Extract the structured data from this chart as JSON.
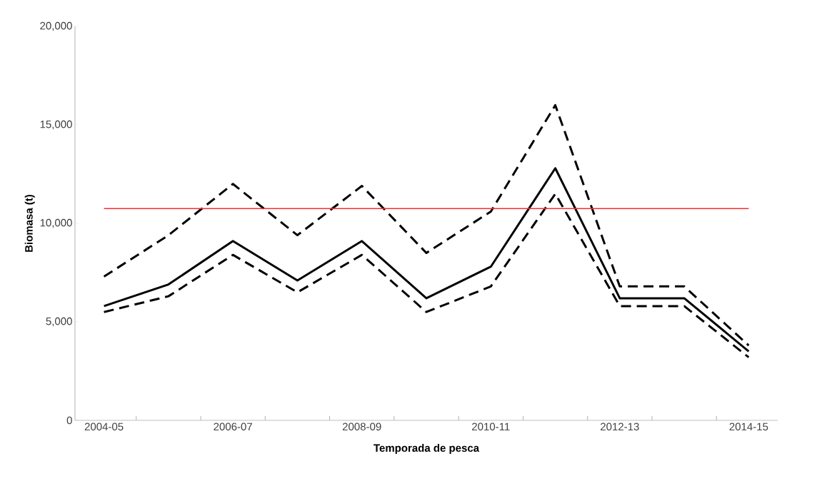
{
  "chart_data": {
    "type": "line",
    "xlabel": "Temporada de pesca",
    "ylabel": "Biomasa (t)",
    "categories": [
      "2004-05",
      null,
      "2006-07",
      null,
      "2008-09",
      null,
      "2010-11",
      null,
      "2012-13",
      null,
      "2014-15"
    ],
    "series": [
      {
        "color": "#000000",
        "line_style": "dashed",
        "values": [
          7300,
          9400,
          12000,
          9400,
          11900,
          8500,
          10600,
          16000,
          6800,
          6800,
          3800
        ]
      },
      {
        "color": "#000000",
        "line_style": "solid",
        "values": [
          5800,
          6900,
          9100,
          7100,
          9100,
          6200,
          7800,
          12800,
          6200,
          6200,
          3500
        ]
      },
      {
        "color": "#000000",
        "line_style": "dashed",
        "values": [
          5500,
          6300,
          8400,
          6500,
          8400,
          5500,
          6800,
          11500,
          5800,
          5800,
          3200
        ]
      }
    ],
    "ref_lines": [
      {
        "axis": "y",
        "value": 10750,
        "color": "#ff2a2a"
      }
    ],
    "ylim": [
      0,
      20000
    ],
    "yticks": [
      0,
      {
        "value": 5000,
        "label": "5,000"
      },
      {
        "value": 10000,
        "label": "10,000"
      },
      {
        "value": 15000,
        "label": "15,000"
      },
      {
        "value": 20000,
        "label": "20,000"
      }
    ],
    "grid": false
  }
}
